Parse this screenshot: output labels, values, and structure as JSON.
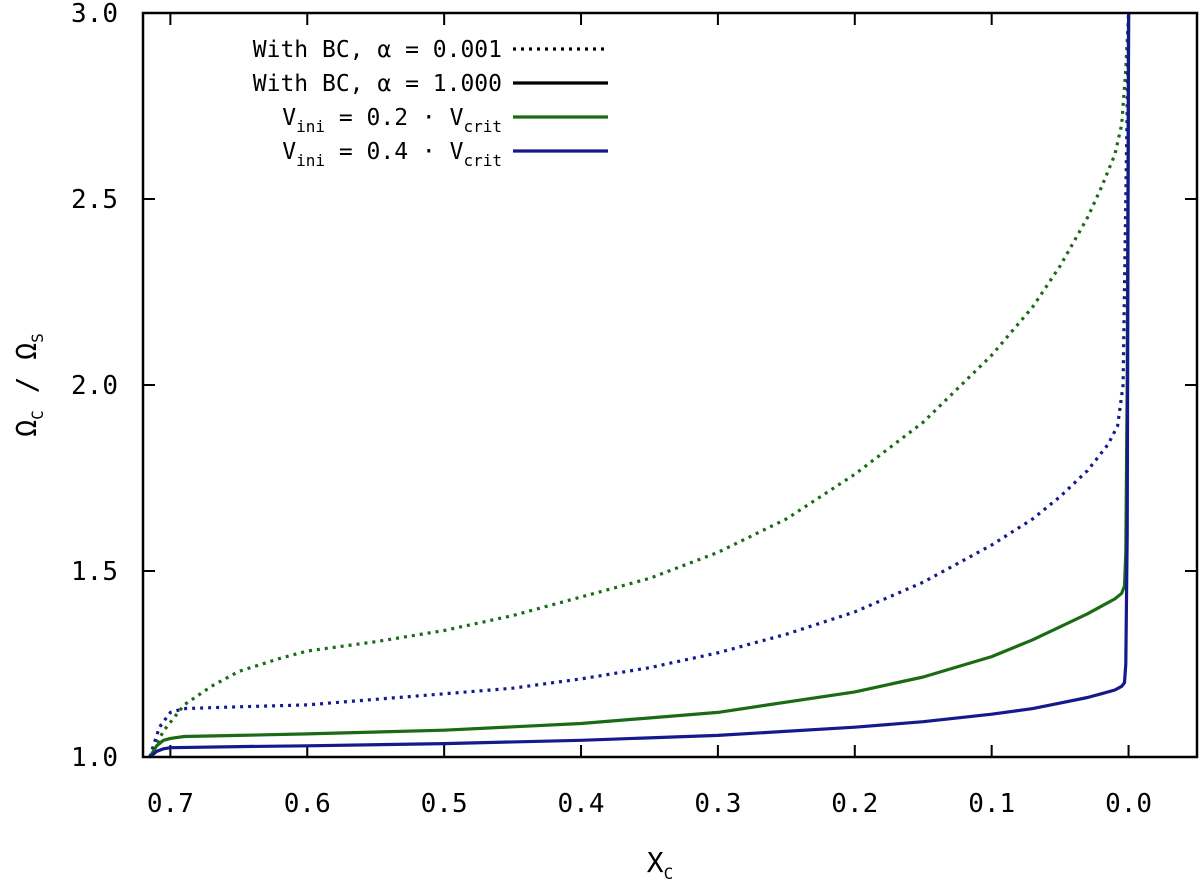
{
  "chart_data": {
    "type": "line",
    "title": "",
    "xlabel": "X",
    "xlabel_sub": "C",
    "ylabel_parts": [
      "Ω",
      "C",
      " / Ω",
      "S"
    ],
    "xlim": [
      0.72,
      -0.05
    ],
    "ylim": [
      1.0,
      3.0
    ],
    "xticks": [
      0.7,
      0.6,
      0.5,
      0.4,
      0.3,
      0.2,
      0.1,
      0.0
    ],
    "xtick_labels": [
      "0.7",
      "0.6",
      "0.5",
      "0.4",
      "0.3",
      "0.2",
      "0.1",
      "0.0"
    ],
    "yticks": [
      1.0,
      1.5,
      2.0,
      2.5,
      3.0
    ],
    "ytick_labels": [
      "1.0",
      "1.5",
      "2.0",
      "2.5",
      "3.0"
    ],
    "legend_position": "top-left",
    "legend": [
      {
        "parts": [
          "With BC, α = 0.001"
        ],
        "style": "dotted",
        "color": "#000000"
      },
      {
        "parts": [
          "With BC, α = 1.000"
        ],
        "style": "solid",
        "color": "#000000"
      },
      {
        "parts": [
          "V",
          "ini",
          " = 0.2  · V",
          "crit"
        ],
        "style": "solid",
        "color": "#1a6b14"
      },
      {
        "parts": [
          "V",
          "ini",
          " = 0.4  · V",
          "crit"
        ],
        "style": "solid",
        "color": "#141a8c"
      }
    ],
    "series": [
      {
        "name": "Vini = 0.2 · Vcrit, α = 0.001",
        "color": "#1a6b14",
        "style": "dotted",
        "x": [
          0.715,
          0.705,
          0.69,
          0.67,
          0.65,
          0.62,
          0.6,
          0.55,
          0.5,
          0.45,
          0.4,
          0.35,
          0.3,
          0.25,
          0.2,
          0.15,
          0.1,
          0.07,
          0.05,
          0.03,
          0.02,
          0.01,
          0.005,
          0.002,
          0.0
        ],
        "y": [
          1.0,
          1.07,
          1.14,
          1.19,
          1.23,
          1.265,
          1.285,
          1.31,
          1.34,
          1.38,
          1.43,
          1.48,
          1.55,
          1.64,
          1.76,
          1.9,
          2.08,
          2.21,
          2.32,
          2.45,
          2.53,
          2.62,
          2.7,
          2.85,
          3.0
        ]
      },
      {
        "name": "Vini = 0.4 · Vcrit, α = 0.001",
        "color": "#141a8c",
        "style": "dotted",
        "x": [
          0.715,
          0.708,
          0.7,
          0.69,
          0.65,
          0.6,
          0.55,
          0.5,
          0.45,
          0.4,
          0.35,
          0.3,
          0.25,
          0.2,
          0.15,
          0.1,
          0.07,
          0.05,
          0.03,
          0.015,
          0.008,
          0.004,
          0.002,
          0.0
        ],
        "y": [
          1.0,
          1.08,
          1.12,
          1.13,
          1.135,
          1.14,
          1.155,
          1.17,
          1.185,
          1.21,
          1.24,
          1.28,
          1.33,
          1.39,
          1.47,
          1.57,
          1.64,
          1.7,
          1.77,
          1.84,
          1.89,
          2.0,
          2.5,
          3.0
        ]
      },
      {
        "name": "Vini = 0.2 · Vcrit, α = 1.000",
        "color": "#1a6b14",
        "style": "solid",
        "x": [
          0.715,
          0.71,
          0.705,
          0.7,
          0.69,
          0.65,
          0.6,
          0.5,
          0.4,
          0.3,
          0.2,
          0.15,
          0.1,
          0.07,
          0.05,
          0.03,
          0.02,
          0.01,
          0.005,
          0.003,
          0.002,
          0.001,
          0.0
        ],
        "y": [
          1.0,
          1.03,
          1.045,
          1.05,
          1.055,
          1.058,
          1.062,
          1.072,
          1.09,
          1.12,
          1.175,
          1.215,
          1.27,
          1.315,
          1.35,
          1.385,
          1.405,
          1.425,
          1.44,
          1.46,
          1.55,
          2.0,
          3.0
        ]
      },
      {
        "name": "Vini = 0.4 · Vcrit, α = 1.000",
        "color": "#141a8c",
        "style": "solid",
        "x": [
          0.715,
          0.71,
          0.705,
          0.7,
          0.65,
          0.6,
          0.5,
          0.4,
          0.3,
          0.2,
          0.15,
          0.1,
          0.07,
          0.05,
          0.03,
          0.02,
          0.01,
          0.005,
          0.003,
          0.002,
          0.001,
          0.0
        ],
        "y": [
          1.0,
          1.015,
          1.022,
          1.025,
          1.028,
          1.03,
          1.036,
          1.045,
          1.058,
          1.08,
          1.095,
          1.115,
          1.13,
          1.145,
          1.16,
          1.17,
          1.18,
          1.19,
          1.2,
          1.25,
          1.6,
          3.0
        ]
      }
    ]
  }
}
